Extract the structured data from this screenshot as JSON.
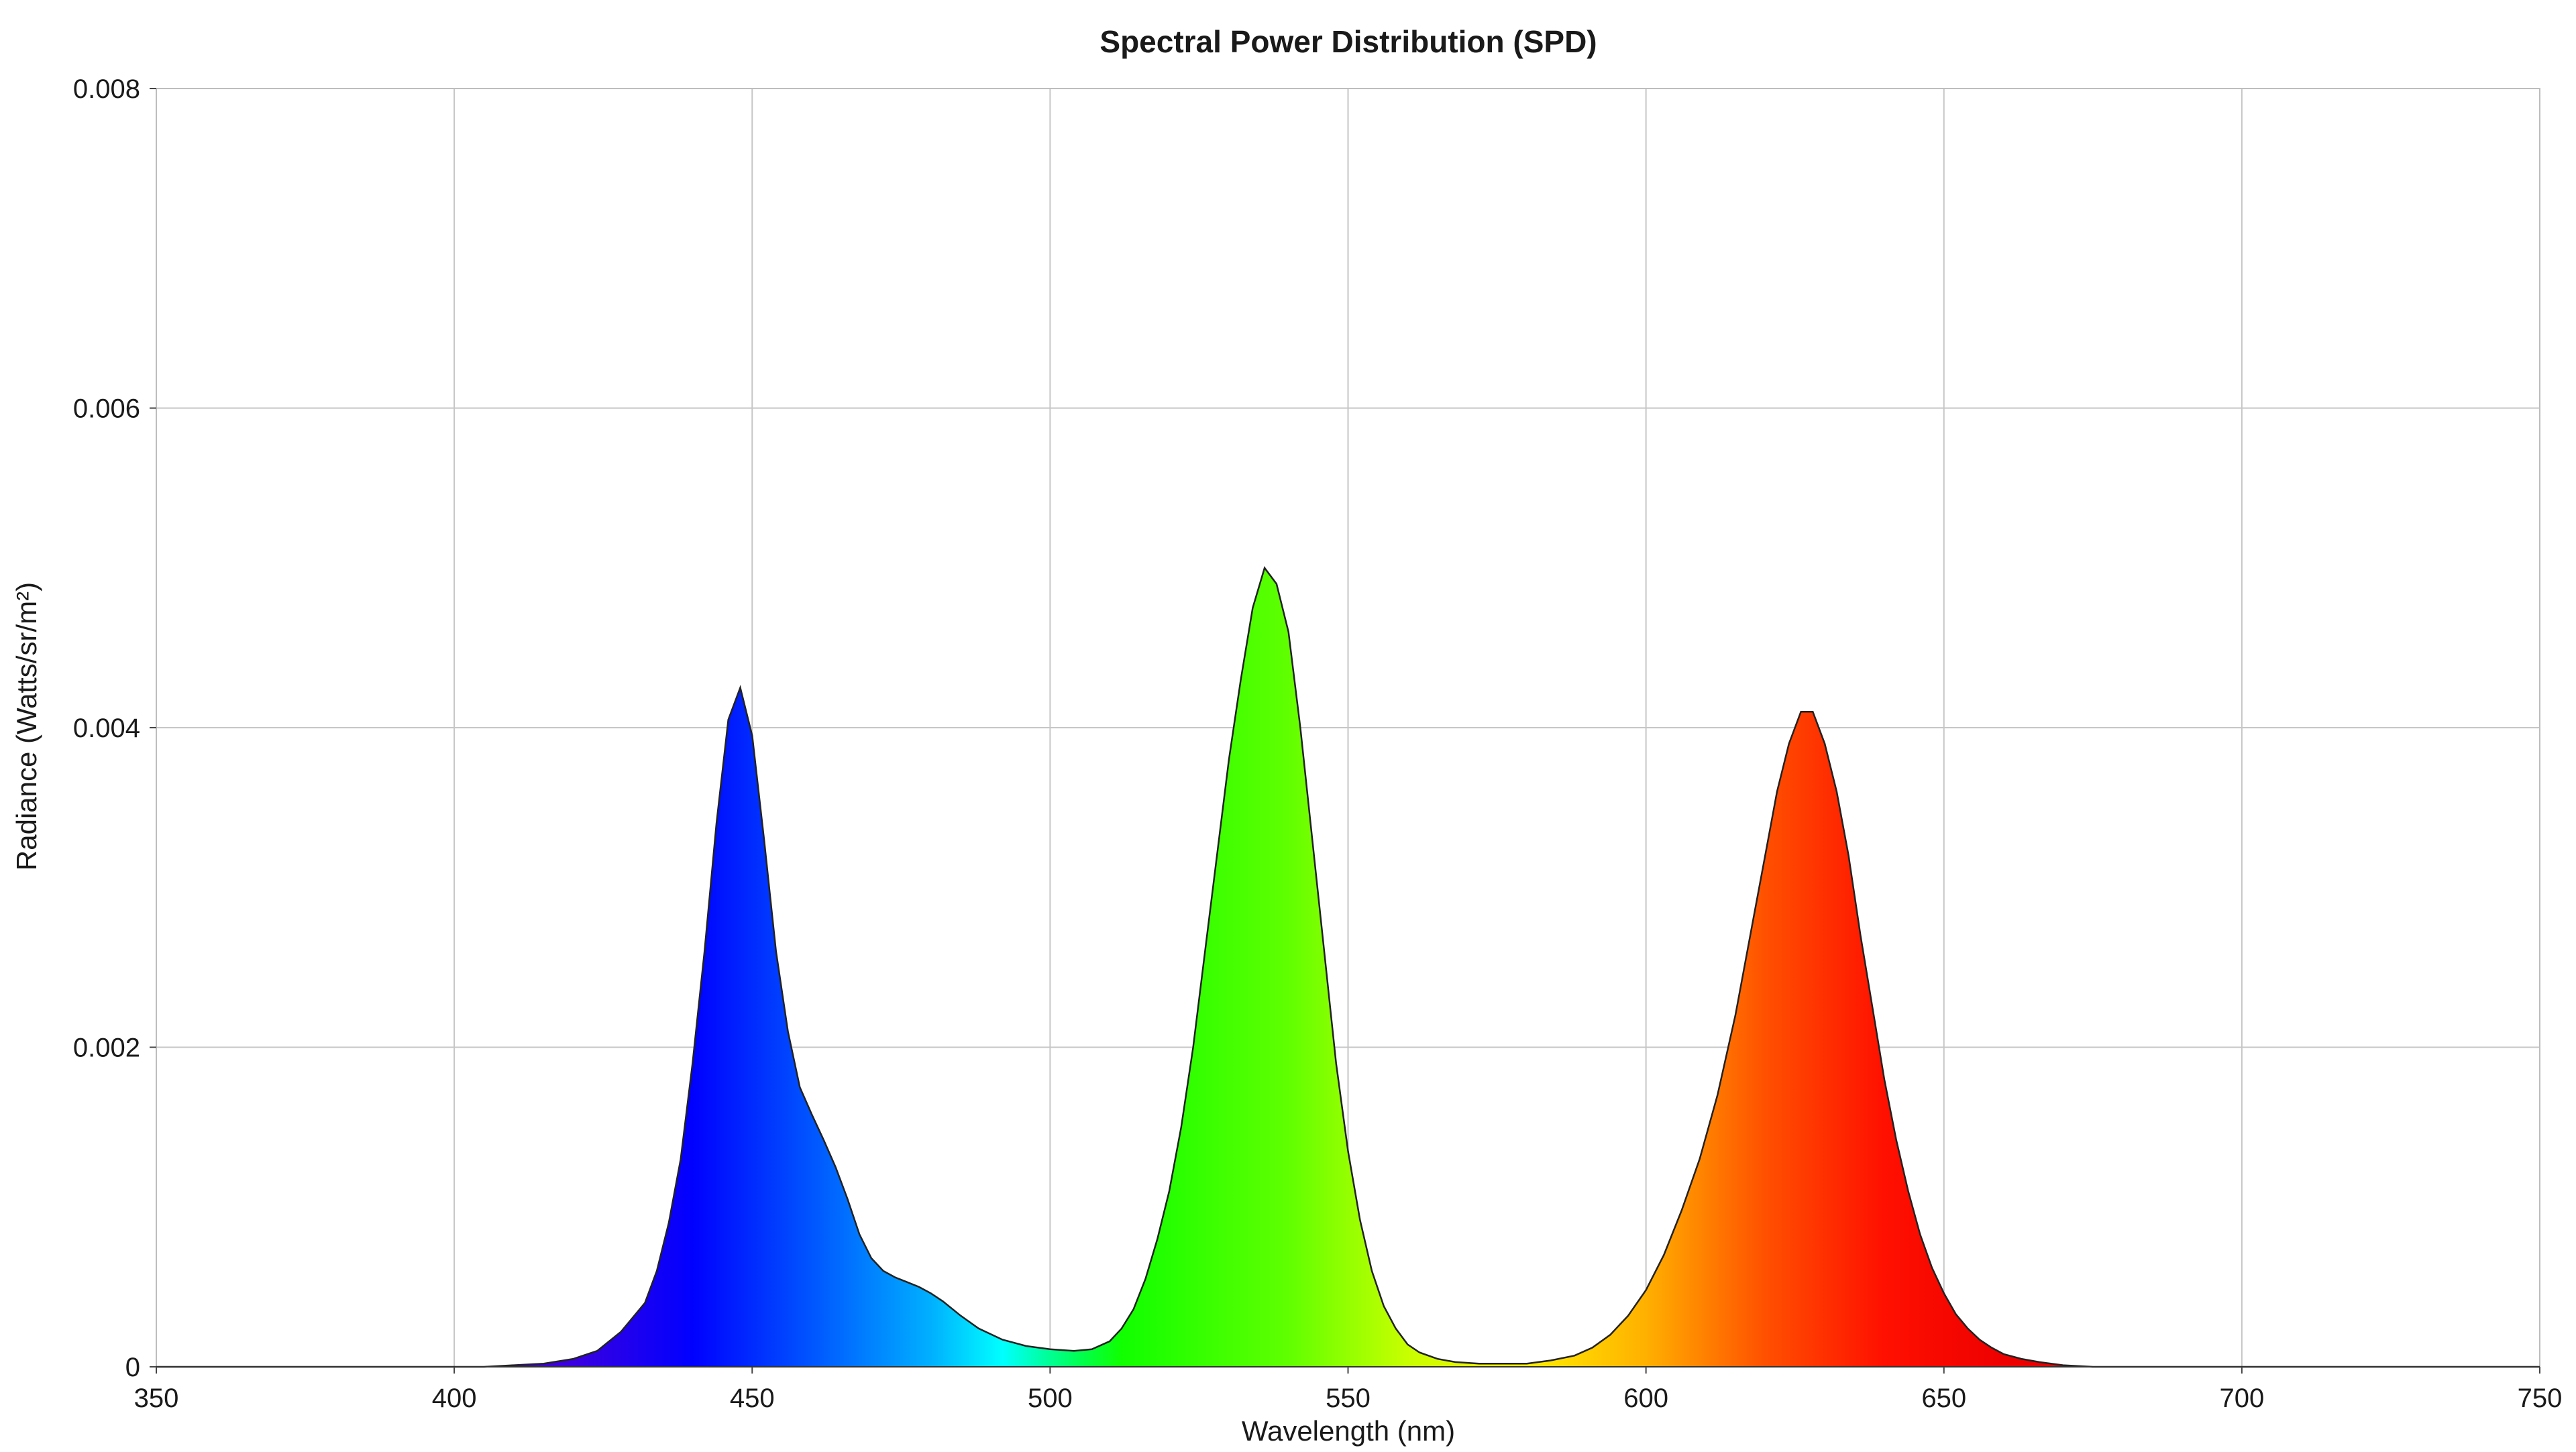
{
  "chart_data": {
    "type": "area",
    "title": "Spectral Power Distribution (SPD)",
    "xlabel": "Wavelength (nm)",
    "ylabel": "Radiance (Watts/sr/m²)",
    "xlim": [
      350,
      750
    ],
    "ylim": [
      0,
      0.008
    ],
    "x_ticks": [
      350,
      400,
      450,
      500,
      550,
      600,
      650,
      700,
      750
    ],
    "x_tick_labels": [
      "350",
      "400",
      "450",
      "500",
      "550",
      "600",
      "650",
      "700",
      "750"
    ],
    "y_ticks": [
      0,
      0.002,
      0.004,
      0.006,
      0.008
    ],
    "y_tick_labels": [
      "0",
      "0.002",
      "0.004",
      "0.006",
      "0.008"
    ],
    "grid": true,
    "legend": "none",
    "fill": "visible-spectrum-gradient",
    "series": [
      {
        "x": [
          350,
          405,
          410,
          415,
          420,
          424,
          428,
          432,
          434,
          436,
          438,
          440,
          442,
          444,
          446,
          448,
          450,
          452,
          454,
          456,
          458,
          460,
          462,
          464,
          466,
          468,
          470,
          472,
          474,
          476,
          478,
          480,
          482,
          485,
          488,
          492,
          496,
          500,
          504,
          507,
          510,
          512,
          514,
          516,
          518,
          520,
          522,
          524,
          526,
          528,
          530,
          532,
          534,
          536,
          538,
          540,
          542,
          544,
          546,
          548,
          550,
          552,
          554,
          556,
          558,
          560,
          562,
          565,
          568,
          572,
          576,
          580,
          584,
          588,
          591,
          594,
          597,
          600,
          603,
          606,
          609,
          612,
          615,
          618,
          620,
          622,
          624,
          626,
          628,
          630,
          632,
          634,
          636,
          638,
          640,
          642,
          644,
          646,
          648,
          650,
          652,
          654,
          656,
          658,
          660,
          663,
          666,
          670,
          675,
          680,
          685,
          690,
          700,
          750
        ],
        "y": [
          0,
          0,
          1e-05,
          2e-05,
          5e-05,
          0.0001,
          0.00022,
          0.0004,
          0.0006,
          0.0009,
          0.0013,
          0.0019,
          0.0026,
          0.0034,
          0.00405,
          0.00425,
          0.00395,
          0.0033,
          0.0026,
          0.0021,
          0.00175,
          0.00158,
          0.00142,
          0.00125,
          0.00105,
          0.00083,
          0.00068,
          0.0006,
          0.00056,
          0.00053,
          0.0005,
          0.00046,
          0.00041,
          0.00032,
          0.00024,
          0.00017,
          0.00013,
          0.00011,
          0.0001,
          0.00011,
          0.00016,
          0.00024,
          0.00036,
          0.00055,
          0.0008,
          0.0011,
          0.0015,
          0.002,
          0.0026,
          0.0032,
          0.0038,
          0.0043,
          0.00475,
          0.005,
          0.0049,
          0.0046,
          0.004,
          0.0033,
          0.0026,
          0.0019,
          0.00135,
          0.00092,
          0.0006,
          0.00038,
          0.00024,
          0.00014,
          9e-05,
          5e-05,
          3e-05,
          2e-05,
          2e-05,
          2e-05,
          4e-05,
          7e-05,
          0.00012,
          0.0002,
          0.00032,
          0.00048,
          0.0007,
          0.00098,
          0.0013,
          0.0017,
          0.0022,
          0.0028,
          0.0032,
          0.0036,
          0.0039,
          0.0041,
          0.0041,
          0.0039,
          0.0036,
          0.0032,
          0.0027,
          0.00225,
          0.0018,
          0.00142,
          0.0011,
          0.00083,
          0.00062,
          0.00046,
          0.00033,
          0.00024,
          0.00017,
          0.00012,
          8e-05,
          5e-05,
          3e-05,
          1e-05,
          0,
          0,
          0,
          0,
          0,
          0
        ]
      }
    ]
  }
}
